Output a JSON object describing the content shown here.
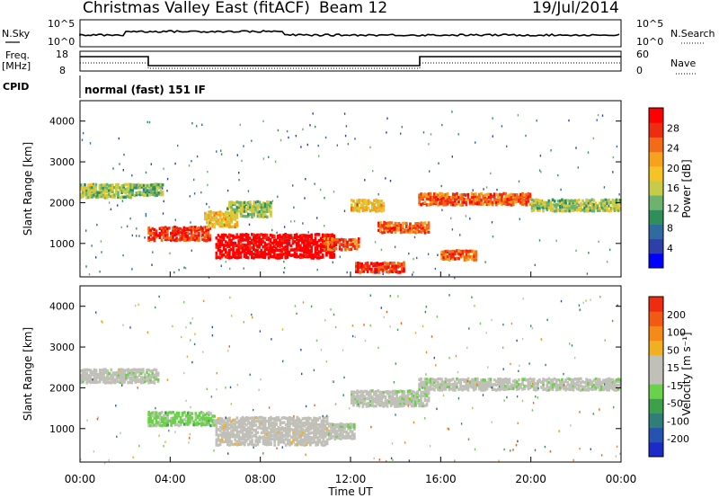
{
  "header": {
    "title": "Christmas Valley East (fitACF)",
    "beam": "Beam 12",
    "date": "19/Jul/2014"
  },
  "top_panels": {
    "nsky_label": "N.Sky",
    "nsky_ticks": [
      "10^5",
      "10^0"
    ],
    "nsearch_label": "N.Search",
    "nsearch_ticks": [
      "10^5",
      "10^0"
    ],
    "freq_label": "Freq.",
    "freq_unit": "[MHz]",
    "freq_ticks": [
      "18",
      "8"
    ],
    "nave_label": "Nave",
    "nave_ticks": [
      "60",
      "0"
    ],
    "cpid_label": "CPID",
    "cpid_value": "normal (fast) 151 IF"
  },
  "axes": {
    "ylabel": "Slant Range [km]",
    "xlabel": "Time UT",
    "yticks": [
      "4000",
      "3000",
      "2000",
      "1000"
    ],
    "xticks": [
      "00:00",
      "04:00",
      "08:00",
      "12:00",
      "16:00",
      "20:00",
      "00:00"
    ]
  },
  "colorbars": {
    "power": {
      "label": "Power [dB]",
      "ticks": [
        "28",
        "24",
        "20",
        "16",
        "12",
        "8",
        "4"
      ],
      "colors": [
        "#0000ff",
        "#2e3fa8",
        "#2f6aa0",
        "#2f8e5a",
        "#6db36d",
        "#c6cc47",
        "#f6c327",
        "#f7a21c",
        "#f36a17",
        "#ee2c10",
        "#ff0000"
      ]
    },
    "velocity": {
      "label": "Velocity [m s⁻¹]",
      "ticks": [
        "200",
        "100",
        "50",
        "15",
        "-15",
        "-50",
        "-100",
        "-200"
      ],
      "colors": [
        "#1c2bc8",
        "#2652b0",
        "#2f7e7a",
        "#3ea04a",
        "#6cd14a",
        "#c0c0b8",
        "#c0c0b8",
        "#f0b020",
        "#f58a18",
        "#f25a14",
        "#ee2c10"
      ]
    }
  },
  "chart_data": [
    {
      "type": "heatmap",
      "title": "Power",
      "xlabel": "Time UT",
      "ylabel": "Slant Range [km]",
      "xlim": [
        0,
        24
      ],
      "ylim": [
        180,
        4500
      ],
      "colorbar": {
        "label": "Power [dB]",
        "range": [
          0,
          30
        ]
      },
      "regions": [
        {
          "t": 0.0,
          "r": 2350,
          "w": 2.3,
          "h": 350,
          "v": 14
        },
        {
          "t": 2.2,
          "r": 2380,
          "w": 1.5,
          "h": 300,
          "v": 12
        },
        {
          "t": 3.0,
          "r": 1300,
          "w": 2.8,
          "h": 350,
          "v": 26
        },
        {
          "t": 5.5,
          "r": 1650,
          "w": 1.5,
          "h": 400,
          "v": 18
        },
        {
          "t": 6.5,
          "r": 1900,
          "w": 2.0,
          "h": 400,
          "v": 14
        },
        {
          "t": 6.0,
          "r": 1000,
          "w": 5.3,
          "h": 600,
          "v": 30
        },
        {
          "t": 10.8,
          "r": 1050,
          "w": 1.6,
          "h": 300,
          "v": 24
        },
        {
          "t": 12.0,
          "r": 2000,
          "w": 1.5,
          "h": 300,
          "v": 18
        },
        {
          "t": 13.2,
          "r": 1450,
          "w": 2.3,
          "h": 280,
          "v": 24
        },
        {
          "t": 12.2,
          "r": 480,
          "w": 2.2,
          "h": 260,
          "v": 26
        },
        {
          "t": 16.0,
          "r": 780,
          "w": 1.6,
          "h": 250,
          "v": 24
        },
        {
          "t": 15.0,
          "r": 2150,
          "w": 5.0,
          "h": 300,
          "v": 24
        },
        {
          "t": 20.0,
          "r": 2000,
          "w": 4.0,
          "h": 300,
          "v": 14
        }
      ]
    },
    {
      "type": "heatmap",
      "title": "Velocity",
      "xlabel": "Time UT",
      "ylabel": "Slant Range [km]",
      "xlim": [
        0,
        24
      ],
      "ylim": [
        180,
        4500
      ],
      "colorbar": {
        "label": "Velocity [m s⁻¹]",
        "range": [
          -250,
          250
        ]
      },
      "regions": [
        {
          "t": 0.0,
          "r": 2350,
          "w": 3.5,
          "h": 350,
          "v": 0
        },
        {
          "t": 3.0,
          "r": 1300,
          "w": 3.0,
          "h": 350,
          "v": -40
        },
        {
          "t": 6.0,
          "r": 1000,
          "w": 5.0,
          "h": 700,
          "v": 40
        },
        {
          "t": 11.0,
          "r": 1000,
          "w": 1.2,
          "h": 400,
          "v": 0
        },
        {
          "t": 12.0,
          "r": 1800,
          "w": 3.5,
          "h": 400,
          "v": 0
        },
        {
          "t": 15.0,
          "r": 2150,
          "w": 9.0,
          "h": 300,
          "v": 0
        }
      ]
    }
  ]
}
